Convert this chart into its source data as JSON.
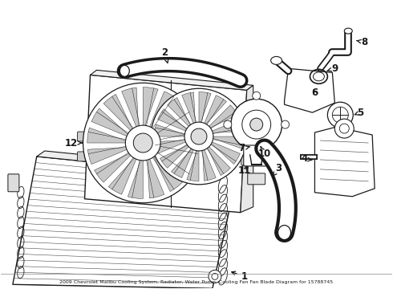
{
  "title": "2009 Chevrolet Malibu Cooling System, Radiator, Water Pump, Cooling Fan Fan Blade Diagram for 15788745",
  "bg": "#ffffff",
  "lc": "#1a1a1a",
  "fig_w": 4.9,
  "fig_h": 3.6,
  "dpi": 100
}
